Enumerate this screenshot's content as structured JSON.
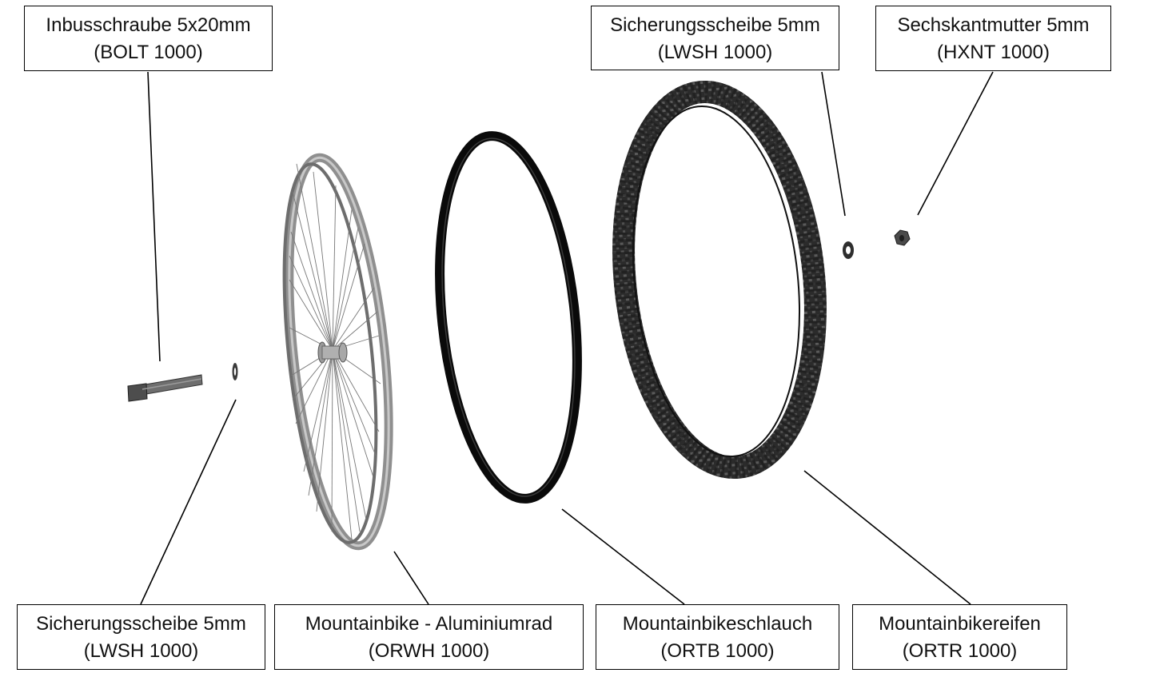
{
  "callouts": {
    "bolt": {
      "name": "Inbusschraube 5x20mm",
      "code": "(BOLT 1000)"
    },
    "washer_right": {
      "name": "Sicherungsscheibe 5mm",
      "code": "(LWSH 1000)"
    },
    "nut": {
      "name": "Sechskantmutter 5mm",
      "code": "(HXNT 1000)"
    },
    "washer_left": {
      "name": "Sicherungsscheibe 5mm",
      "code": "(LWSH 1000)"
    },
    "wheel": {
      "name": "Mountainbike - Aluminiumrad",
      "code": "(ORWH 1000)"
    },
    "tube": {
      "name": "Mountainbikeschlauch",
      "code": "(ORTB 1000)"
    },
    "tire": {
      "name": "Mountainbikereifen",
      "code": "(ORTR 1000)"
    }
  }
}
